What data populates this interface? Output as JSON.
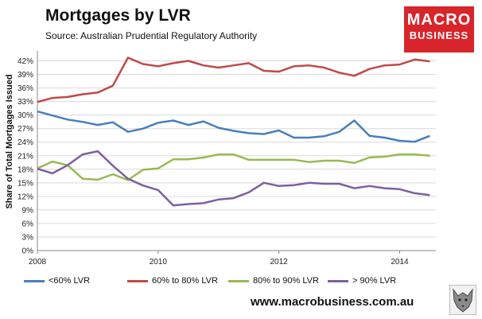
{
  "header": {
    "title": "Mortgages by LVR",
    "subtitle": "Source: Australian Prudential Regulatory Authority"
  },
  "logo": {
    "line1": "MACRO",
    "line2": "BUSINESS"
  },
  "footer": {
    "url": "www.macrobusiness.com.au"
  },
  "colors": {
    "blue": "#4a7ebb",
    "red": "#be4b48",
    "green": "#98b954",
    "purple": "#7d60a0",
    "brand": "#d8252b"
  },
  "chart_data": {
    "type": "line",
    "title": "Mortgages by LVR",
    "xlabel": "",
    "ylabel": "Share of Total Mortgages Issued",
    "xlim": [
      2008,
      2014.6
    ],
    "ylim": [
      0,
      43.5
    ],
    "x_ticks": [
      2008,
      2010,
      2012,
      2014
    ],
    "x_tick_labels": [
      "2008",
      "2010",
      "2012",
      "2014"
    ],
    "y_ticks": [
      0,
      3,
      6,
      9,
      12,
      15,
      18,
      21,
      24,
      27,
      30,
      33,
      36,
      39,
      42
    ],
    "y_tick_labels": [
      "0%",
      "3%",
      "6%",
      "9%",
      "12%",
      "15%",
      "18%",
      "21%",
      "24%",
      "27%",
      "30%",
      "33%",
      "36%",
      "39%",
      "42%"
    ],
    "grid": true,
    "legend_position": "bottom",
    "x": [
      2008.0,
      2008.25,
      2008.5,
      2008.75,
      2009.0,
      2009.25,
      2009.5,
      2009.75,
      2010.0,
      2010.25,
      2010.5,
      2010.75,
      2011.0,
      2011.25,
      2011.5,
      2011.75,
      2012.0,
      2012.25,
      2012.5,
      2012.75,
      2013.0,
      2013.25,
      2013.5,
      2013.75,
      2014.0,
      2014.25,
      2014.5
    ],
    "series": [
      {
        "name": "<60% LVR",
        "color": "#4a7ebb",
        "values": [
          30.8,
          29.9,
          29.0,
          28.5,
          27.8,
          28.4,
          26.3,
          27.0,
          28.3,
          28.8,
          27.8,
          28.6,
          27.2,
          26.5,
          26.0,
          25.8,
          26.6,
          25.0,
          25.0,
          25.3,
          26.3,
          28.8,
          25.4,
          25.0,
          24.3,
          24.1,
          25.4
        ]
      },
      {
        "name": "60% to 80% LVR",
        "color": "#be4b48",
        "values": [
          32.9,
          33.8,
          34.0,
          34.6,
          35.0,
          36.5,
          42.7,
          41.3,
          40.8,
          41.5,
          42.0,
          41.0,
          40.5,
          41.0,
          41.5,
          39.8,
          39.6,
          40.8,
          41.0,
          40.5,
          39.4,
          38.7,
          40.2,
          41.0,
          41.2,
          42.3,
          41.9
        ]
      },
      {
        "name": "80% to 90% LVR",
        "color": "#98b954",
        "values": [
          18.2,
          19.7,
          18.9,
          15.9,
          15.7,
          16.9,
          15.6,
          17.9,
          18.2,
          20.2,
          20.2,
          20.6,
          21.3,
          21.3,
          20.1,
          20.1,
          20.1,
          20.1,
          19.6,
          19.9,
          19.9,
          19.4,
          20.6,
          20.8,
          21.3,
          21.3,
          21.0
        ]
      },
      {
        "name": "> 90% LVR",
        "color": "#7d60a0",
        "values": [
          18.1,
          17.1,
          18.9,
          21.3,
          22.0,
          18.8,
          15.9,
          14.4,
          13.4,
          10.0,
          10.3,
          10.5,
          11.3,
          11.6,
          12.9,
          15.0,
          14.3,
          14.5,
          15.0,
          14.8,
          14.8,
          13.8,
          14.3,
          13.8,
          13.6,
          12.7,
          12.3
        ]
      }
    ]
  }
}
